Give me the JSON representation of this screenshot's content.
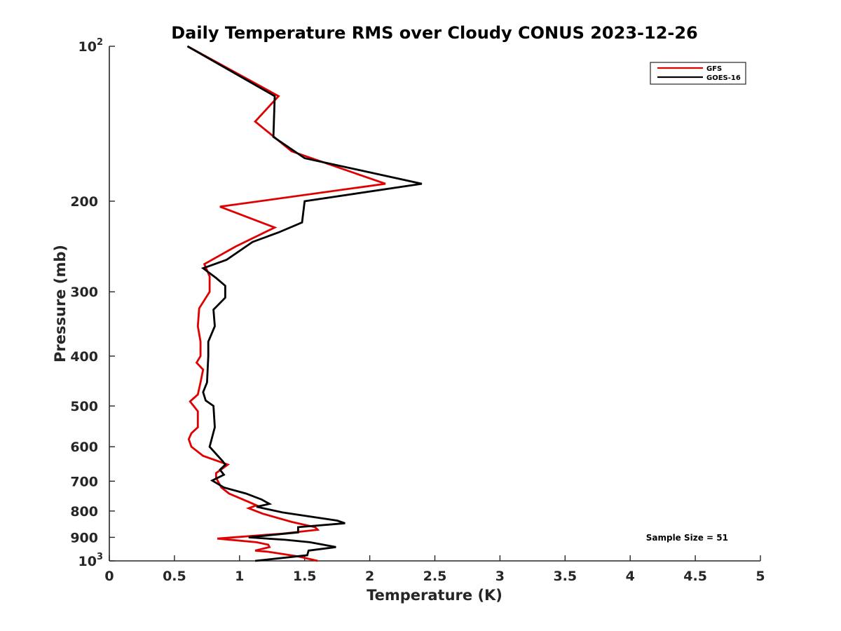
{
  "chart_data": {
    "type": "line",
    "title": "Daily Temperature RMS over Cloudy CONUS 2023-12-26",
    "xlabel": "Temperature (K)",
    "ylabel": "Pressure (mb)",
    "xlim": [
      0,
      5
    ],
    "ylim": [
      100,
      1000
    ],
    "y_scale": "log",
    "y_reversed": true,
    "grid": false,
    "legend_position": "top-right",
    "x_ticks": [
      "0",
      "0.5",
      "1",
      "1.5",
      "2",
      "2.5",
      "3",
      "3.5",
      "4",
      "4.5",
      "5"
    ],
    "y_ticks": [
      {
        "value": 100,
        "base": "10",
        "exp": "2"
      },
      {
        "value": 200,
        "label": "200"
      },
      {
        "value": 300,
        "label": "300"
      },
      {
        "value": 400,
        "label": "400"
      },
      {
        "value": 500,
        "label": "500"
      },
      {
        "value": 600,
        "label": "600"
      },
      {
        "value": 700,
        "label": "700"
      },
      {
        "value": 800,
        "label": "800"
      },
      {
        "value": 900,
        "label": "900"
      },
      {
        "value": 1000,
        "base": "10",
        "exp": "3"
      }
    ],
    "annotation": "Sample Size = 51",
    "series": [
      {
        "name": "GFS",
        "color": "#e00000",
        "points": [
          [
            0.6,
            100
          ],
          [
            1.3,
            125
          ],
          [
            1.12,
            140
          ],
          [
            1.4,
            160
          ],
          [
            2.12,
            185
          ],
          [
            0.85,
            205
          ],
          [
            1.27,
            225
          ],
          [
            0.97,
            245
          ],
          [
            0.73,
            265
          ],
          [
            0.77,
            280
          ],
          [
            0.77,
            300
          ],
          [
            0.69,
            323
          ],
          [
            0.68,
            350
          ],
          [
            0.7,
            375
          ],
          [
            0.7,
            400
          ],
          [
            0.67,
            412
          ],
          [
            0.72,
            425
          ],
          [
            0.7,
            450
          ],
          [
            0.68,
            475
          ],
          [
            0.62,
            490
          ],
          [
            0.68,
            512
          ],
          [
            0.68,
            550
          ],
          [
            0.63,
            565
          ],
          [
            0.61,
            580
          ],
          [
            0.63,
            600
          ],
          [
            0.72,
            625
          ],
          [
            0.91,
            650
          ],
          [
            0.82,
            675
          ],
          [
            0.82,
            690
          ],
          [
            0.86,
            720
          ],
          [
            0.92,
            740
          ],
          [
            1.08,
            770
          ],
          [
            1.13,
            780
          ],
          [
            1.07,
            790
          ],
          [
            1.18,
            810
          ],
          [
            1.4,
            840
          ],
          [
            1.58,
            860
          ],
          [
            1.6,
            870
          ],
          [
            1.33,
            885
          ],
          [
            0.83,
            905
          ],
          [
            1.13,
            920
          ],
          [
            1.22,
            930
          ],
          [
            1.23,
            940
          ],
          [
            1.12,
            955
          ],
          [
            1.22,
            960
          ],
          [
            1.45,
            980
          ],
          [
            1.6,
            1000
          ]
        ]
      },
      {
        "name": "GOES-16",
        "color": "#000000",
        "points": [
          [
            0.6,
            100
          ],
          [
            1.27,
            125
          ],
          [
            1.26,
            150
          ],
          [
            1.5,
            165
          ],
          [
            2.4,
            185
          ],
          [
            1.5,
            200
          ],
          [
            1.48,
            220
          ],
          [
            1.3,
            230
          ],
          [
            1.1,
            240
          ],
          [
            0.9,
            260
          ],
          [
            0.72,
            270
          ],
          [
            0.82,
            282
          ],
          [
            0.89,
            292
          ],
          [
            0.89,
            308
          ],
          [
            0.8,
            325
          ],
          [
            0.81,
            350
          ],
          [
            0.76,
            375
          ],
          [
            0.76,
            400
          ],
          [
            0.75,
            450
          ],
          [
            0.72,
            470
          ],
          [
            0.74,
            488
          ],
          [
            0.8,
            500
          ],
          [
            0.81,
            550
          ],
          [
            0.77,
            600
          ],
          [
            0.87,
            640
          ],
          [
            0.89,
            650
          ],
          [
            0.85,
            665
          ],
          [
            0.88,
            680
          ],
          [
            0.79,
            698
          ],
          [
            0.88,
            720
          ],
          [
            1.05,
            740
          ],
          [
            1.17,
            760
          ],
          [
            1.23,
            775
          ],
          [
            1.13,
            785
          ],
          [
            1.33,
            805
          ],
          [
            1.75,
            835
          ],
          [
            1.81,
            845
          ],
          [
            1.45,
            860
          ],
          [
            1.45,
            880
          ],
          [
            1.07,
            900
          ],
          [
            1.35,
            910
          ],
          [
            1.54,
            920
          ],
          [
            1.74,
            940
          ],
          [
            1.53,
            955
          ],
          [
            1.52,
            975
          ],
          [
            1.12,
            1000
          ]
        ]
      }
    ]
  }
}
